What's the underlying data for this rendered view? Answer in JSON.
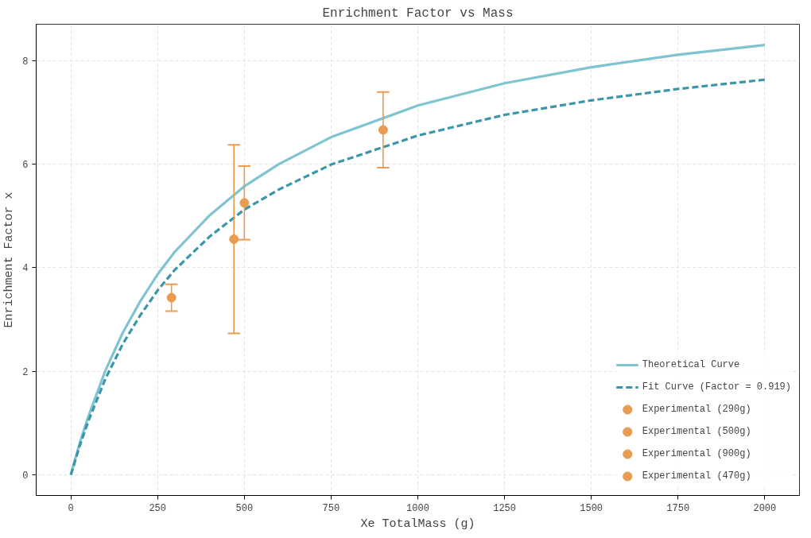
{
  "chart_data": {
    "type": "line",
    "title": "Enrichment Factor vs Mass",
    "xlabel": "Xe TotalMass (g)",
    "ylabel": "Enrichment Factor x",
    "xlim": [
      -100,
      2100
    ],
    "ylim": [
      -0.4,
      8.7
    ],
    "xticks": [
      0,
      250,
      500,
      750,
      1000,
      1250,
      1500,
      1750,
      2000
    ],
    "yticks": [
      0,
      2,
      4,
      6,
      8
    ],
    "grid": true,
    "legend": "bottom right",
    "series": [
      {
        "name": "Theoretical Curve",
        "line_style": "solid",
        "color": "#7fc4d0",
        "x": [
          0,
          25,
          50,
          100,
          150,
          200,
          250,
          300,
          400,
          500,
          600,
          750,
          1000,
          1250,
          1500,
          1750,
          2000
        ],
        "values": [
          0,
          0.6,
          1.12,
          2.02,
          2.75,
          3.35,
          3.87,
          4.31,
          5.01,
          5.57,
          6.0,
          6.52,
          7.13,
          7.56,
          7.87,
          8.11,
          8.3
        ]
      },
      {
        "name": "Fit Curve (Factor = 0.919)",
        "line_style": "dashed",
        "color": "#3a96a8",
        "x": [
          0,
          25,
          50,
          100,
          150,
          200,
          250,
          300,
          400,
          500,
          600,
          750,
          1000,
          1250,
          1500,
          1750,
          2000
        ],
        "values": [
          0,
          0.55,
          1.03,
          1.86,
          2.53,
          3.08,
          3.56,
          3.96,
          4.6,
          5.12,
          5.51,
          5.99,
          6.55,
          6.95,
          7.23,
          7.45,
          7.63
        ]
      },
      {
        "name": "Experimental (290g)",
        "type": "scatter",
        "marker": "circle",
        "color": "#e89c52",
        "x": [
          290
        ],
        "values": [
          3.42
        ],
        "errors": [
          0.26
        ]
      },
      {
        "name": "Experimental (500g)",
        "type": "scatter",
        "marker": "circle",
        "color": "#e89c52",
        "x": [
          500
        ],
        "values": [
          5.25
        ],
        "errors": [
          0.71
        ]
      },
      {
        "name": "Experimental (900g)",
        "type": "scatter",
        "marker": "circle",
        "color": "#e89c52",
        "x": [
          900
        ],
        "values": [
          6.66
        ],
        "errors": [
          0.73
        ]
      },
      {
        "name": "Experimental (470g)",
        "type": "scatter",
        "marker": "circle",
        "color": "#e89c52",
        "x": [
          470
        ],
        "values": [
          4.55
        ],
        "errors": [
          1.82
        ]
      }
    ]
  }
}
